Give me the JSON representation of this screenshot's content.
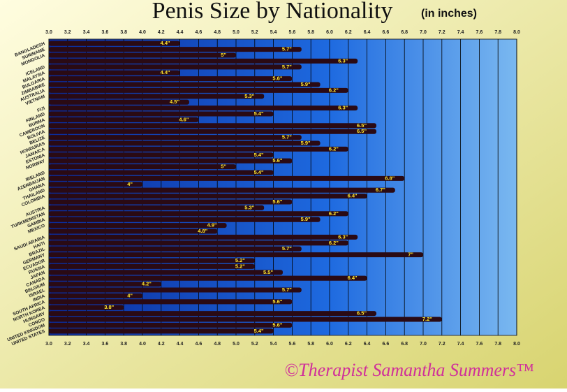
{
  "chart_data": {
    "type": "bar",
    "orientation": "horizontal",
    "title": "Penis Size by Nationality",
    "subtitle": "(in inches)",
    "footer": "©Therapist Samantha Summers™",
    "categories": [
      "BANGLADESH",
      "SURINAME",
      "MONGOLIA",
      null,
      "ICELAND",
      "MALAYSIA",
      "BULGARIA",
      "ZIMBABWE",
      "AUSTRALIA",
      "VIETNAM",
      null,
      "FIJI",
      "FINLAND",
      "BURMA",
      "CAMEROON",
      "BOLIVIA",
      "BELIZE",
      "HONDURAS",
      "JAMAICA",
      "ESTONIA",
      "NORWAY",
      null,
      "IRELAND",
      "AZERBAIJAN",
      "GHANA",
      "THAILAND",
      "COLOMBIA",
      null,
      "AUSTRIA",
      "TURKMENISTAN",
      "GAMBIA",
      "MEXICO",
      null,
      "SAUDI ARABIA",
      "HAITI",
      "BRAZIL",
      "GERMANY",
      "ECUADOR",
      "RUSSIA",
      "JAPAN",
      "CANADA",
      "BELGIUM",
      "ISRAEL",
      "INDIA",
      "SOUTH AFRICA",
      "NORTH KOREA",
      "HUNGARY",
      "CONGO",
      "UNITED KINGDOM",
      "UNITED STATES"
    ],
    "values": [
      4.4,
      5.7,
      5,
      6.3,
      5.7,
      4.4,
      5.6,
      5.9,
      6.2,
      5.3,
      4.5,
      6.3,
      5.4,
      4.6,
      6.5,
      6.5,
      5.7,
      5.9,
      6.2,
      5.4,
      5.6,
      5,
      5.4,
      6.8,
      4,
      6.7,
      6.4,
      5.6,
      5.3,
      6.2,
      5.9,
      4.9,
      4.8,
      6.3,
      6.2,
      5.7,
      7,
      5.2,
      5.2,
      5.5,
      6.4,
      4.2,
      5.7,
      4,
      5.6,
      3.8,
      6.5,
      7.2,
      5.6,
      5.4
    ],
    "value_labels": [
      "4.4\"",
      "5.7\"",
      "5\"",
      "6.3\"",
      "5.7\"",
      "4.4\"",
      "5.6\"",
      "5.9\"",
      "6.2\"",
      "5.3\"",
      "4.5\"",
      "6.3\"",
      "5.4\"",
      "4.6\"",
      "6.5\"",
      "6.5\"",
      "5.7\"",
      "5.9\"",
      "6.2\"",
      "5.4\"",
      "5.6\"",
      "5\"",
      "5.4\"",
      "6.8\"",
      "4\"",
      "6.7\"",
      "6.4\"",
      "5.6\"",
      "5.3\"",
      "6.2\"",
      "5.9\"",
      "4.9\"",
      "4.8\"",
      "6.3\"",
      "6.2\"",
      "5.7\"",
      "7\"",
      "5.2\"",
      "5.2\"",
      "5.5\"",
      "6.4\"",
      "4.2\"",
      "5.7\"",
      "4\"",
      "5.6\"",
      "3.8\"",
      "6.5\"",
      "7.2\"",
      "5.6\"",
      "5.4\""
    ],
    "color": "#2a0a14",
    "xlim": [
      3,
      8
    ],
    "xticks": [
      {
        "value": 3,
        "label": "3.0"
      },
      3.2,
      3.4,
      3.6,
      3.8,
      {
        "value": 4,
        "label": "4.0"
      },
      4.2,
      4.4,
      4.6,
      4.8,
      {
        "value": 5,
        "label": "5.0"
      },
      5.2,
      5.4,
      5.6,
      5.8,
      {
        "value": 6,
        "label": "6.0"
      },
      6.2,
      6.4,
      6.6,
      6.8,
      {
        "value": 7,
        "label": "7.0"
      },
      7.2,
      7.4,
      7.6,
      7.8,
      {
        "value": 8,
        "label": "8.0"
      }
    ],
    "grid": true
  }
}
